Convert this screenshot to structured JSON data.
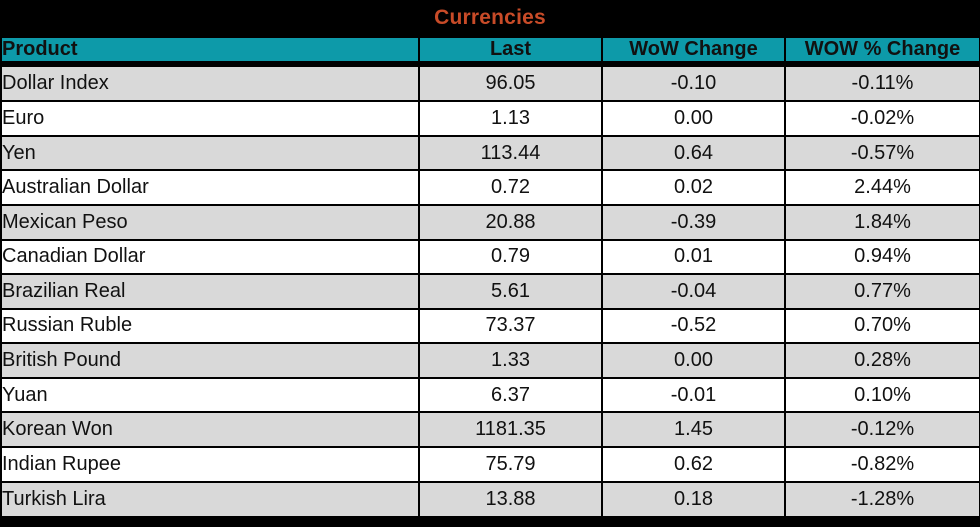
{
  "chart_data": {
    "type": "table",
    "title": "Currencies",
    "columns": [
      "Product",
      "Last",
      "WoW Change",
      "WOW % Change"
    ],
    "rows": [
      [
        "Dollar Index",
        "96.05",
        "-0.10",
        "-0.11%"
      ],
      [
        "Euro",
        "1.13",
        "0.00",
        "-0.02%"
      ],
      [
        "Yen",
        "113.44",
        "0.64",
        "-0.57%"
      ],
      [
        "Australian Dollar",
        "0.72",
        "0.02",
        "2.44%"
      ],
      [
        "Mexican Peso",
        "20.88",
        "-0.39",
        "1.84%"
      ],
      [
        "Canadian Dollar",
        "0.79",
        "0.01",
        "0.94%"
      ],
      [
        "Brazilian Real",
        "5.61",
        "-0.04",
        "0.77%"
      ],
      [
        "Russian Ruble",
        "73.37",
        "-0.52",
        "0.70%"
      ],
      [
        "British Pound",
        "1.33",
        "0.00",
        "0.28%"
      ],
      [
        "Yuan",
        "6.37",
        "-0.01",
        "0.10%"
      ],
      [
        "Korean Won",
        "1181.35",
        "1.45",
        "-0.12%"
      ],
      [
        "Indian Rupee",
        "75.79",
        "0.62",
        "-0.82%"
      ],
      [
        "Turkish Lira",
        "13.88",
        "0.18",
        "-1.28%"
      ]
    ],
    "layout": {
      "row_striping": "odd rows gray, even rows white",
      "alignment": [
        "left",
        "center",
        "center",
        "center"
      ]
    }
  },
  "colors": {
    "title_text": "#C84B28",
    "title_background": "#000000",
    "header_background": "#0D9AA9",
    "row_alt_background": "#D9D9D9",
    "row_background": "#FFFFFF",
    "grid_border": "#000000",
    "body_text": "#111111"
  }
}
